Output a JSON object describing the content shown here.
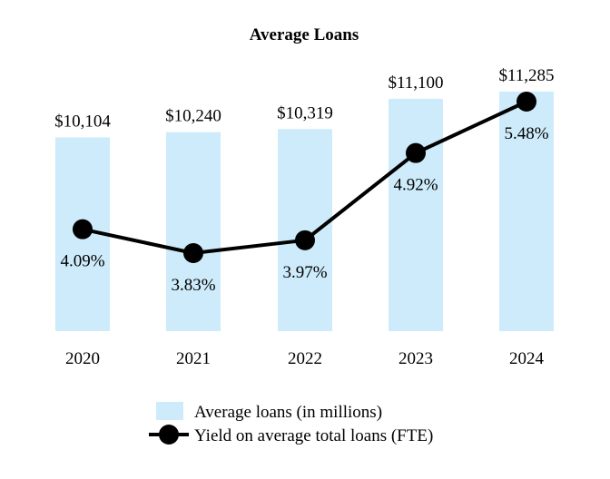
{
  "chart_data": {
    "type": "bar",
    "title": "Average Loans",
    "categories": [
      "2020",
      "2021",
      "2022",
      "2023",
      "2024"
    ],
    "series": [
      {
        "name": "Average loans (in millions)",
        "kind": "bar",
        "values": [
          10104,
          10240,
          10319,
          11100,
          11285
        ],
        "labels": [
          "$10,104",
          "$10,240",
          "$10,319",
          "$11,100",
          "$11,285"
        ]
      },
      {
        "name": "Yield on average total loans (FTE)",
        "kind": "line",
        "values": [
          4.09,
          3.83,
          3.97,
          4.92,
          5.48
        ],
        "labels": [
          "4.09%",
          "3.83%",
          "3.97%",
          "4.92%",
          "5.48%"
        ]
      }
    ],
    "xlabel": "",
    "ylabel": "",
    "legend_position": "bottom-center",
    "grid": false,
    "colors": {
      "bar": "#cdebfa",
      "line": "#000000",
      "marker": "#000000"
    }
  }
}
